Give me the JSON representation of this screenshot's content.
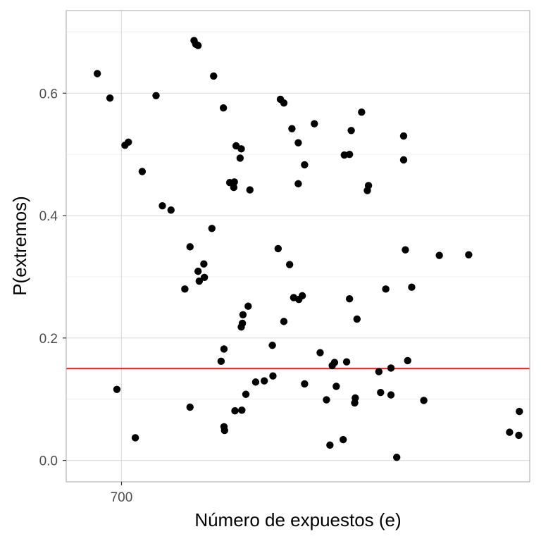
{
  "chart_data": {
    "type": "scatter",
    "title": "",
    "xlabel": "Número de expuestos (e)",
    "ylabel": "P(extremos)",
    "x_ticks": [
      700
    ],
    "y_ticks": [
      0.0,
      0.2,
      0.4,
      0.6
    ],
    "y_tick_labels": [
      "0.0",
      "0.2",
      "0.4",
      "0.6"
    ],
    "xlim": [
      690.4,
      770.9
    ],
    "ylim": [
      -0.035,
      0.735
    ],
    "grid": true,
    "reference_line": {
      "y": 0.15,
      "color": "#e41a1c"
    },
    "point_color": "#000000",
    "points": [
      [
        695.8,
        0.632
      ],
      [
        698.0,
        0.592
      ],
      [
        699.2,
        0.116
      ],
      [
        700.6,
        0.515
      ],
      [
        701.2,
        0.52
      ],
      [
        702.4,
        0.037
      ],
      [
        703.6,
        0.472
      ],
      [
        706.0,
        0.596
      ],
      [
        707.1,
        0.416
      ],
      [
        708.6,
        0.409
      ],
      [
        711.0,
        0.28
      ],
      [
        711.9,
        0.349
      ],
      [
        711.9,
        0.087
      ],
      [
        712.6,
        0.686
      ],
      [
        712.9,
        0.68
      ],
      [
        713.3,
        0.678
      ],
      [
        713.3,
        0.309
      ],
      [
        713.5,
        0.293
      ],
      [
        714.3,
        0.321
      ],
      [
        714.4,
        0.299
      ],
      [
        715.7,
        0.379
      ],
      [
        716.0,
        0.628
      ],
      [
        717.3,
        0.162
      ],
      [
        717.7,
        0.576
      ],
      [
        717.8,
        0.182
      ],
      [
        717.8,
        0.055
      ],
      [
        717.9,
        0.049
      ],
      [
        718.8,
        0.454
      ],
      [
        719.5,
        0.446
      ],
      [
        719.6,
        0.455
      ],
      [
        719.7,
        0.081
      ],
      [
        719.9,
        0.514
      ],
      [
        720.6,
        0.494
      ],
      [
        720.8,
        0.509
      ],
      [
        720.8,
        0.218
      ],
      [
        720.9,
        0.082
      ],
      [
        721.0,
        0.224
      ],
      [
        721.1,
        0.238
      ],
      [
        721.6,
        0.108
      ],
      [
        722.0,
        0.252
      ],
      [
        722.3,
        0.442
      ],
      [
        723.3,
        0.128
      ],
      [
        724.8,
        0.13
      ],
      [
        726.2,
        0.188
      ],
      [
        726.3,
        0.138
      ],
      [
        727.2,
        0.346
      ],
      [
        727.6,
        0.59
      ],
      [
        728.2,
        0.584
      ],
      [
        728.2,
        0.227
      ],
      [
        729.2,
        0.32
      ],
      [
        729.6,
        0.542
      ],
      [
        729.9,
        0.266
      ],
      [
        730.7,
        0.519
      ],
      [
        730.7,
        0.452
      ],
      [
        730.8,
        0.263
      ],
      [
        731.4,
        0.269
      ],
      [
        731.8,
        0.483
      ],
      [
        731.8,
        0.125
      ],
      [
        733.5,
        0.55
      ],
      [
        734.5,
        0.176
      ],
      [
        735.6,
        0.099
      ],
      [
        736.2,
        0.025
      ],
      [
        736.6,
        0.155
      ],
      [
        737.0,
        0.16
      ],
      [
        737.3,
        0.121
      ],
      [
        738.5,
        0.034
      ],
      [
        738.7,
        0.499
      ],
      [
        739.1,
        0.161
      ],
      [
        739.6,
        0.264
      ],
      [
        739.6,
        0.5
      ],
      [
        739.9,
        0.539
      ],
      [
        740.5,
        0.094
      ],
      [
        740.6,
        0.102
      ],
      [
        740.9,
        0.231
      ],
      [
        741.7,
        0.569
      ],
      [
        742.7,
        0.441
      ],
      [
        742.9,
        0.449
      ],
      [
        744.7,
        0.145
      ],
      [
        745.0,
        0.111
      ],
      [
        745.9,
        0.28
      ],
      [
        746.8,
        0.107
      ],
      [
        746.8,
        0.151
      ],
      [
        747.8,
        0.005
      ],
      [
        749.0,
        0.53
      ],
      [
        749.0,
        0.491
      ],
      [
        749.3,
        0.344
      ],
      [
        749.7,
        0.163
      ],
      [
        750.4,
        0.283
      ],
      [
        752.5,
        0.098
      ],
      [
        755.2,
        0.335
      ],
      [
        760.3,
        0.336
      ],
      [
        767.4,
        0.046
      ],
      [
        769.0,
        0.041
      ],
      [
        769.1,
        0.08
      ]
    ]
  }
}
